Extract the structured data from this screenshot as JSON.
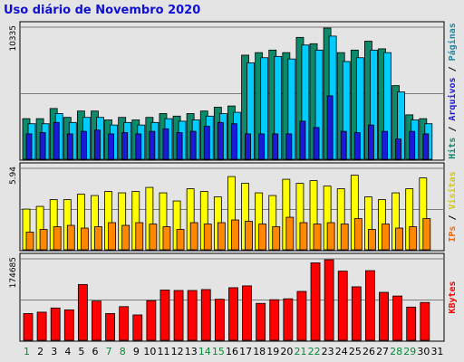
{
  "title": "Uso diário de Novembro 2020",
  "colors": {
    "background": "#e4e4e4",
    "title": "#1010d0",
    "hits": "#0c8a6a",
    "files": "#00ccff",
    "pages": "#1a1ad8",
    "visits": "#ffff00",
    "sites": "#ff8800",
    "kbytes": "#ff0000",
    "weekend_label": "#0a8a3a"
  },
  "chart_data": [
    {
      "type": "bar",
      "panel": "hits-files-pages",
      "ymax_label": "10335",
      "ylim": [
        0,
        10335
      ],
      "legend": [
        "Hits",
        "Arquivos",
        "Páginas"
      ],
      "categories": [
        "1",
        "2",
        "3",
        "4",
        "5",
        "6",
        "7",
        "8",
        "9",
        "10",
        "11",
        "12",
        "13",
        "14",
        "15",
        "16",
        "17",
        "18",
        "19",
        "20",
        "21",
        "22",
        "23",
        "24",
        "25",
        "26",
        "27",
        "28",
        "29",
        "30",
        "31"
      ],
      "series": [
        {
          "name": "Hits",
          "values": [
            3200,
            3200,
            4000,
            3300,
            3800,
            3800,
            3100,
            3300,
            3100,
            3300,
            3600,
            3400,
            3600,
            3800,
            4100,
            4200,
            8200,
            8400,
            8600,
            8400,
            9600,
            9100,
            10335,
            8400,
            8600,
            9300,
            8700,
            5800,
            3500,
            3200,
            0
          ]
        },
        {
          "name": "Arquivos",
          "values": [
            2800,
            2800,
            3600,
            2900,
            3300,
            3300,
            2700,
            2900,
            2700,
            2900,
            3200,
            3000,
            3100,
            3400,
            3600,
            3700,
            7600,
            8000,
            8100,
            7900,
            9000,
            8600,
            9700,
            7700,
            8000,
            8600,
            8400,
            5300,
            3100,
            2800,
            0
          ]
        },
        {
          "name": "Páginas",
          "values": [
            2000,
            2100,
            2900,
            2000,
            2200,
            2300,
            2000,
            2100,
            2000,
            2200,
            2400,
            2100,
            2200,
            2600,
            2900,
            2800,
            2000,
            2000,
            2000,
            2000,
            3000,
            2500,
            5000,
            2200,
            2100,
            2700,
            2200,
            1600,
            2200,
            2000,
            0
          ]
        }
      ]
    },
    {
      "type": "bar",
      "panel": "visits-sites",
      "ymax_label": "5.94",
      "ylim": [
        0,
        5.94
      ],
      "legend": [
        "Visitas",
        "IPs"
      ],
      "categories": [
        "1",
        "2",
        "3",
        "4",
        "5",
        "6",
        "7",
        "8",
        "9",
        "10",
        "11",
        "12",
        "13",
        "14",
        "15",
        "16",
        "17",
        "18",
        "19",
        "20",
        "21",
        "22",
        "23",
        "24",
        "25",
        "26",
        "27",
        "28",
        "29",
        "30",
        "31"
      ],
      "series": [
        {
          "name": "Visitas",
          "values": [
            3.0,
            3.2,
            3.7,
            3.7,
            4.1,
            4.0,
            4.3,
            4.2,
            4.3,
            4.6,
            4.2,
            3.6,
            4.5,
            4.3,
            3.9,
            5.4,
            4.9,
            4.2,
            4.0,
            5.2,
            4.9,
            5.1,
            4.7,
            4.5,
            5.5,
            3.9,
            3.7,
            4.2,
            4.5,
            5.3,
            0
          ]
        },
        {
          "name": "IPs",
          "values": [
            1.3,
            1.5,
            1.7,
            1.8,
            1.6,
            1.7,
            2.0,
            1.8,
            2.0,
            1.9,
            1.7,
            1.5,
            2.0,
            1.9,
            2.0,
            2.2,
            2.1,
            1.9,
            1.7,
            2.4,
            2.0,
            1.9,
            2.0,
            1.9,
            2.3,
            1.5,
            1.9,
            1.6,
            1.7,
            2.3,
            0
          ]
        }
      ]
    },
    {
      "type": "bar",
      "panel": "kbytes",
      "ymax_label": "174685",
      "ylim": [
        0,
        174685
      ],
      "legend": [
        "KBytes"
      ],
      "categories": [
        "1",
        "2",
        "3",
        "4",
        "5",
        "6",
        "7",
        "8",
        "9",
        "10",
        "11",
        "12",
        "13",
        "14",
        "15",
        "16",
        "17",
        "18",
        "19",
        "20",
        "21",
        "22",
        "23",
        "24",
        "25",
        "26",
        "27",
        "28",
        "29",
        "30",
        "31"
      ],
      "series": [
        {
          "name": "KBytes",
          "values": [
            58000,
            61000,
            70000,
            66000,
            121000,
            85000,
            58000,
            73000,
            55000,
            86000,
            109000,
            108000,
            108000,
            110000,
            89000,
            114000,
            118000,
            80000,
            88000,
            90000,
            106000,
            168000,
            174685,
            150000,
            116000,
            151000,
            104000,
            96000,
            72000,
            82000,
            0
          ]
        }
      ]
    }
  ],
  "days": [
    "1",
    "2",
    "3",
    "4",
    "5",
    "6",
    "7",
    "8",
    "9",
    "10",
    "11",
    "12",
    "13",
    "14",
    "15",
    "16",
    "17",
    "18",
    "19",
    "20",
    "21",
    "22",
    "23",
    "24",
    "25",
    "26",
    "27",
    "28",
    "29",
    "30",
    "31"
  ],
  "weekend_days": [
    "1",
    "7",
    "8",
    "14",
    "15",
    "21",
    "22",
    "28",
    "29"
  ],
  "side_labels": {
    "panel1": [
      {
        "text": "Hits",
        "color": "#0c8a6a"
      },
      {
        "text": " / ",
        "color": "#000000"
      },
      {
        "text": "Arquivos",
        "color": "#1a1ad8"
      },
      {
        "text": " / ",
        "color": "#000000"
      },
      {
        "text": "Páginas",
        "color": "#1a8aa8"
      }
    ],
    "panel2": [
      {
        "text": "IPs",
        "color": "#ff6600"
      },
      {
        "text": " / ",
        "color": "#000000"
      },
      {
        "text": "Visitas",
        "color": "#d8c800"
      }
    ],
    "panel3": [
      {
        "text": "KBytes",
        "color": "#ff0000"
      }
    ]
  }
}
